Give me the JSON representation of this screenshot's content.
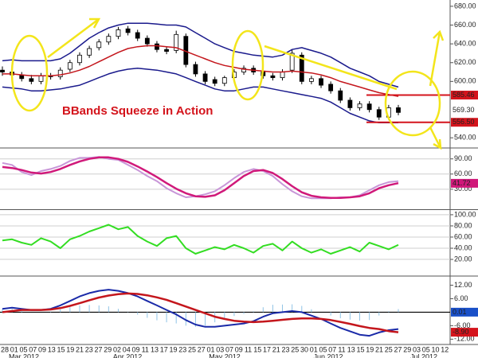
{
  "chart_data": [
    {
      "type": "candlestick",
      "title": "BBands Squeeze in Action",
      "open": [
        612,
        610,
        607,
        603,
        600,
        606,
        605,
        613,
        620,
        628,
        636,
        642,
        648,
        656,
        652,
        646,
        640,
        634,
        633,
        648,
        618,
        608,
        602,
        598,
        604,
        610,
        614,
        610,
        606,
        604,
        612,
        628,
        600,
        603,
        597,
        590,
        580,
        572,
        576,
        570,
        562,
        572
      ],
      "high": [
        616,
        613,
        610,
        607,
        609,
        609,
        615,
        623,
        631,
        638,
        645,
        651,
        658,
        659,
        655,
        649,
        643,
        637,
        654,
        651,
        621,
        611,
        605,
        606,
        613,
        617,
        617,
        613,
        609,
        613,
        634,
        631,
        606,
        606,
        600,
        593,
        583,
        579,
        579,
        573,
        575,
        575
      ],
      "low": [
        606,
        603,
        600,
        597,
        597,
        602,
        602,
        610,
        617,
        625,
        633,
        639,
        645,
        649,
        643,
        637,
        631,
        629,
        630,
        615,
        605,
        597,
        595,
        595,
        601,
        607,
        607,
        603,
        601,
        601,
        609,
        597,
        597,
        593,
        587,
        577,
        569,
        569,
        567,
        559,
        559,
        564
      ],
      "close": [
        610,
        607,
        603,
        600,
        606,
        605,
        612,
        620,
        628,
        635,
        642,
        648,
        655,
        652,
        646,
        640,
        634,
        632,
        650,
        618,
        608,
        600,
        598,
        604,
        610,
        614,
        610,
        606,
        604,
        610,
        630,
        600,
        603,
        596,
        590,
        580,
        572,
        576,
        570,
        562,
        572,
        567
      ],
      "up_color": "#ffffff",
      "down_color": "#000000",
      "series": [
        {
          "color": "#1a1a8c",
          "width": 1.5,
          "values": [
            622,
            623,
            622,
            622,
            622,
            622,
            624,
            630,
            638,
            646,
            652,
            657,
            660,
            662,
            662,
            662,
            661,
            660,
            660,
            658,
            652,
            646,
            640,
            636,
            632,
            630,
            628,
            627,
            626,
            628,
            634,
            636,
            633,
            630,
            626,
            620,
            614,
            610,
            606,
            600,
            597,
            594
          ]
        },
        {
          "color": "#c4161c",
          "width": 1.5,
          "values": [
            608,
            608,
            607,
            606,
            606,
            606,
            607,
            609,
            612,
            616,
            621,
            626,
            631,
            635,
            637,
            638,
            638,
            637,
            636,
            632,
            628,
            624,
            620,
            617,
            615,
            613,
            612,
            611,
            610,
            610,
            611,
            610,
            609,
            607,
            604,
            600,
            597,
            594,
            591,
            588,
            586,
            584
          ]
        },
        {
          "color": "#1a1a8c",
          "width": 1.5,
          "values": [
            594,
            593,
            592,
            590,
            590,
            591,
            592,
            594,
            596,
            600,
            604,
            608,
            611,
            613,
            614,
            613,
            612,
            610,
            608,
            604,
            600,
            596,
            592,
            590,
            590,
            592,
            594,
            594,
            592,
            590,
            588,
            586,
            584,
            582,
            578,
            572,
            566,
            562,
            558,
            556,
            556,
            556
          ]
        }
      ],
      "markers": [
        {
          "value": 585.46,
          "color": "#d4141c",
          "text_color": "#ffffff",
          "line": true
        },
        {
          "value": 569.3,
          "label": "569.30",
          "color": "#ffffff",
          "text_color": "#000000",
          "line": false
        },
        {
          "value": 556.5,
          "label": "556.50",
          "color": "#d4141c",
          "text_color": "#ffffff",
          "line": true
        }
      ],
      "ylim": [
        530,
        685
      ],
      "yticks": [
        {
          "value": 540,
          "label": "540.00"
        },
        {
          "value": 600,
          "label": "600.00"
        },
        {
          "value": 620,
          "label": "620.00"
        },
        {
          "value": 640,
          "label": "640.00"
        },
        {
          "value": 660,
          "label": "660.00"
        },
        {
          "value": 680,
          "label": "680.00"
        }
      ],
      "grid": false
    },
    {
      "type": "line",
      "series": [
        {
          "color": "#c896d8",
          "width": 2,
          "values": [
            82,
            78,
            64,
            58,
            66,
            70,
            76,
            86,
            92,
            92,
            94,
            90,
            88,
            78,
            68,
            56,
            46,
            32,
            22,
            14,
            16,
            20,
            26,
            38,
            52,
            64,
            70,
            66,
            56,
            40,
            26,
            16,
            12,
            12,
            12,
            14,
            14,
            18,
            28,
            38,
            44,
            46
          ]
        },
        {
          "color": "#d0197a",
          "width": 2.5,
          "values": [
            74,
            72,
            68,
            63,
            61,
            64,
            70,
            78,
            85,
            90,
            93,
            93,
            90,
            84,
            75,
            65,
            54,
            42,
            31,
            22,
            16,
            15,
            18,
            28,
            42,
            56,
            66,
            68,
            62,
            50,
            36,
            24,
            17,
            14,
            13,
            13,
            14,
            16,
            22,
            32,
            38,
            42
          ]
        }
      ],
      "markers": [
        {
          "value": 41.72,
          "color": "#d0197a",
          "text_color": "#ffffff",
          "line": false
        }
      ],
      "ylim": [
        -8,
        110
      ],
      "yticks": [
        {
          "value": 30,
          "label": "30.00"
        },
        {
          "value": 60,
          "label": "60.00"
        },
        {
          "value": 90,
          "label": "90.00"
        }
      ],
      "grid": true
    },
    {
      "type": "line",
      "series": [
        {
          "color": "#33dd22",
          "width": 2,
          "values": [
            54,
            56,
            50,
            46,
            58,
            52,
            40,
            56,
            62,
            70,
            76,
            82,
            74,
            78,
            62,
            52,
            44,
            58,
            62,
            40,
            30,
            36,
            42,
            38,
            46,
            40,
            32,
            44,
            48,
            36,
            52,
            40,
            32,
            38,
            30,
            36,
            42,
            34,
            50,
            44,
            38,
            46
          ]
        }
      ],
      "ylim": [
        -7,
        107
      ],
      "yticks": [
        {
          "value": 20,
          "label": "20.00"
        },
        {
          "value": 40,
          "label": "40.00"
        },
        {
          "value": 60,
          "label": "60.00"
        },
        {
          "value": 80,
          "label": "80.00"
        },
        {
          "value": 100,
          "label": "100.00"
        }
      ],
      "grid": true
    },
    {
      "type": "line",
      "zero_line": true,
      "series": [
        {
          "type": "bar",
          "color": "#8fc3e6",
          "width": 1,
          "values": [
            1.5,
            1.5,
            0.5,
            0,
            0,
            0.3,
            1.2,
            2.2,
            3,
            3.2,
            3,
            2.6,
            1.5,
            0.2,
            -1.1,
            -2.5,
            -3.6,
            -4.5,
            -5,
            -6,
            -6.5,
            -6,
            -4.5,
            -3,
            -1.7,
            -0.8,
            0.4,
            2.2,
            3.3,
            3.4,
            3.5,
            2.8,
            1.3,
            0,
            -1.5,
            -2.7,
            -3.3,
            -3.8,
            -3.5,
            -1.5,
            0.4,
            1.4
          ]
        },
        {
          "color": "#1a2aa8",
          "width": 2,
          "values": [
            1.5,
            2,
            1.5,
            1,
            1,
            1.5,
            3,
            5,
            7,
            8.5,
            9.5,
            10,
            9.5,
            8.5,
            7,
            5,
            3,
            1,
            -1,
            -3.5,
            -5.5,
            -6.5,
            -6.5,
            -6,
            -5.5,
            -5,
            -4,
            -2,
            -0.5,
            0,
            0.5,
            0,
            -1.5,
            -3,
            -5,
            -7,
            -8.5,
            -10,
            -10.5,
            -9,
            -8,
            -7.5
          ]
        },
        {
          "color": "#c4161c",
          "width": 2.5,
          "values": [
            0,
            0.5,
            1,
            1,
            1,
            1.2,
            1.8,
            2.8,
            4,
            5.3,
            6.5,
            7.4,
            8,
            8.3,
            8.1,
            7.5,
            6.6,
            5.5,
            4,
            2.5,
            1,
            -0.5,
            -2,
            -3,
            -3.8,
            -4.2,
            -4.4,
            -4.2,
            -3.8,
            -3.4,
            -3,
            -2.8,
            -2.8,
            -3,
            -3.5,
            -4.3,
            -5.2,
            -6.2,
            -7,
            -7.5,
            -8.4,
            -8.9
          ]
        }
      ],
      "markers": [
        {
          "value": 0.01,
          "color": "#1a50c8",
          "text_color": "#ffffff",
          "line": false
        },
        {
          "value": -8.9,
          "label": "-8.90",
          "color": "#d4141c",
          "text_color": "#ffffff",
          "line": false
        }
      ],
      "ylim": [
        -14,
        15
      ],
      "yticks": [
        {
          "value": -12,
          "label": "-12.00"
        },
        {
          "value": -6,
          "label": "-6.00"
        },
        {
          "value": 6,
          "label": "6.00"
        },
        {
          "value": 12,
          "label": "12.00"
        }
      ],
      "grid": false
    }
  ],
  "x_axis": {
    "day_labels": [
      "28",
      "01",
      "05",
      "07",
      "09",
      "13",
      "15",
      "19",
      "21",
      "23",
      "27",
      "29",
      "02",
      "04",
      "09",
      "11",
      "13",
      "17",
      "19",
      "23",
      "25",
      "27",
      "01",
      "03",
      "07",
      "09",
      "11",
      "15",
      "17",
      "21",
      "23",
      "25",
      "30",
      "01",
      "05",
      "07",
      "11",
      "13",
      "15",
      "19",
      "21",
      "25",
      "27",
      "29",
      "03",
      "05",
      "10",
      "12"
    ],
    "month_labels": [
      "Mar 2012",
      "Apr 2012",
      "May 2012",
      "Jun 2012",
      "Jul 2012"
    ]
  }
}
